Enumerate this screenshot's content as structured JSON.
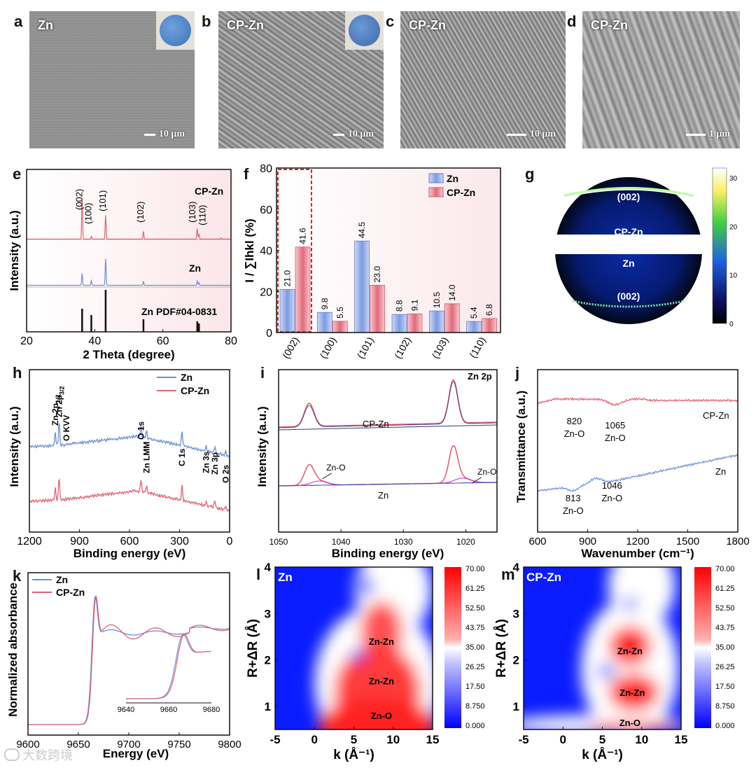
{
  "panels": {
    "a": {
      "letter": "a",
      "sample": "Zn",
      "scale": "10 μm"
    },
    "b": {
      "letter": "b",
      "sample": "CP-Zn",
      "scale": "10 μm"
    },
    "c": {
      "letter": "c",
      "sample": "CP-Zn",
      "scale": "10 μm"
    },
    "d": {
      "letter": "d",
      "sample": "CP-Zn",
      "scale": "1 μm"
    },
    "e": {
      "letter": "e"
    },
    "f": {
      "letter": "f"
    },
    "g": {
      "letter": "g"
    },
    "h": {
      "letter": "h"
    },
    "i": {
      "letter": "i"
    },
    "j": {
      "letter": "j"
    },
    "k": {
      "letter": "k"
    },
    "l": {
      "letter": "l"
    },
    "m": {
      "letter": "m"
    }
  },
  "colors": {
    "zn": "#6b8fdc",
    "cpzn": "#e06372",
    "black": "#111111"
  },
  "watermark": "大数跨境",
  "chart_data": [
    {
      "id": "e",
      "type": "line",
      "title": "",
      "xlabel": "2 Theta (degree)",
      "ylabel": "Intensity (a.u.)",
      "xlim": [
        20,
        80
      ],
      "xticks": [
        20,
        40,
        60,
        80
      ],
      "series": [
        {
          "name": "CP-Zn",
          "label": "CP-Zn",
          "peaks": [
            [
              36.3,
              0.95
            ],
            [
              39.0,
              0.06
            ],
            [
              43.2,
              0.55
            ],
            [
              54.3,
              0.18
            ],
            [
              70.1,
              0.24
            ],
            [
              70.6,
              0.12
            ],
            [
              77.0,
              0.03
            ]
          ]
        },
        {
          "name": "Zn",
          "label": "Zn",
          "peaks": [
            [
              36.3,
              0.45
            ],
            [
              39.0,
              0.18
            ],
            [
              43.2,
              1.0
            ],
            [
              54.3,
              0.14
            ],
            [
              70.1,
              0.16
            ],
            [
              70.6,
              0.1
            ]
          ]
        },
        {
          "name": "Zn PDF#04-0831",
          "label": "Zn PDF#04-0831",
          "peaks": [
            [
              36.3,
              0.55
            ],
            [
              39.0,
              0.4
            ],
            [
              43.2,
              1.0
            ],
            [
              54.3,
              0.3
            ],
            [
              70.1,
              0.25
            ],
            [
              70.6,
              0.2
            ]
          ]
        }
      ],
      "annotations": [
        {
          "text": "(002)",
          "x": 36.3
        },
        {
          "text": "(100)",
          "x": 39.0
        },
        {
          "text": "(101)",
          "x": 43.2
        },
        {
          "text": "(102)",
          "x": 54.3
        },
        {
          "text": "(103)",
          "x": 69.5
        },
        {
          "text": "(110)",
          "x": 72.5
        }
      ]
    },
    {
      "id": "f",
      "type": "bar",
      "title": "",
      "ylabel": "I / ∑Ihkl (%)",
      "ylim": [
        0,
        80
      ],
      "yticks": [
        0,
        20,
        40,
        60,
        80
      ],
      "categories": [
        "(002)",
        "(100)",
        "(101)",
        "(102)",
        "(103)",
        "(110)"
      ],
      "series": [
        {
          "name": "Zn",
          "values": [
            21.0,
            9.8,
            44.5,
            8.8,
            10.5,
            5.4
          ],
          "labels": [
            "21.0",
            "9.8",
            "44.5",
            "8.8",
            "10.5",
            "5.4"
          ]
        },
        {
          "name": "CP-Zn",
          "values": [
            41.6,
            5.5,
            23.0,
            9.1,
            14.0,
            6.8
          ],
          "labels": [
            "41.6",
            "5.5",
            "23.0",
            "9.1",
            "14.0",
            "6.8"
          ]
        }
      ],
      "legend": "top-right"
    },
    {
      "id": "g",
      "type": "heatmap",
      "title": "",
      "labels": [
        "(002)",
        "CP-Zn",
        "Zn",
        "(002)"
      ],
      "colorbar": {
        "ticks": [
          "30",
          "20",
          "10",
          "0"
        ],
        "range": [
          0,
          32
        ]
      }
    },
    {
      "id": "h",
      "type": "line",
      "title": "",
      "xlabel": "Binding energy (eV)",
      "ylabel": "Intensity (a.u.)",
      "xlim": [
        1200,
        0
      ],
      "xticks": [
        1200,
        900,
        600,
        300,
        0
      ],
      "series": [
        {
          "name": "Zn"
        },
        {
          "name": "CP-Zn"
        }
      ],
      "legend": "top-right",
      "annotations": [
        {
          "text": "Zn 2p",
          "sub": "1/2",
          "x": 1045
        },
        {
          "text": "Zn 2p",
          "sub": "3/2",
          "x": 1022
        },
        {
          "text": "O KVV",
          "x": 978
        },
        {
          "text": "O 1s",
          "x": 531
        },
        {
          "text": "Zn LMM",
          "x": 498
        },
        {
          "text": "C 1s",
          "x": 285
        },
        {
          "text": "Zn 3s",
          "x": 140
        },
        {
          "text": "Zn 3p",
          "x": 89
        },
        {
          "text": "O 2s",
          "x": 24
        }
      ]
    },
    {
      "id": "i",
      "type": "line",
      "title": "Zn 2p",
      "xlabel": "Binding energy (eV)",
      "ylabel": "Intensity (a.u.)",
      "xlim": [
        1050,
        1015
      ],
      "xticks": [
        1050,
        1040,
        1030,
        1020
      ],
      "series": [
        {
          "name": "CP-Zn",
          "label": "CP-Zn"
        },
        {
          "name": "Zn",
          "label": "Zn"
        }
      ],
      "peaks": [
        1045.1,
        1022.0
      ],
      "annotations": [
        {
          "text": "Zn-O",
          "x": 1041
        },
        {
          "text": "Zn-O",
          "x": 1017
        }
      ]
    },
    {
      "id": "j",
      "type": "line",
      "title": "",
      "xlabel": "Wavenumber (cm⁻¹)",
      "ylabel": "Transmittance (a.u.)",
      "xlim": [
        600,
        1800
      ],
      "xticks": [
        600,
        900,
        1200,
        1500,
        1800
      ],
      "series": [
        {
          "name": "CP-Zn",
          "label": "CP-Zn"
        },
        {
          "name": "Zn",
          "label": "Zn"
        }
      ],
      "annotations": [
        {
          "value": "820",
          "text": "Zn-O"
        },
        {
          "value": "1065",
          "text": "Zn-O"
        },
        {
          "value": "813",
          "text": "Zn-O"
        },
        {
          "value": "1046",
          "text": "Zn-O"
        }
      ]
    },
    {
      "id": "k",
      "type": "line",
      "title": "",
      "xlabel": "Energy (eV)",
      "ylabel": "Normalized absorbance",
      "xlim": [
        9600,
        9800
      ],
      "xticks": [
        9600,
        9650,
        9700,
        9750,
        9800
      ],
      "inset": {
        "xlim": [
          9640,
          9680
        ],
        "xticks": [
          9640,
          9660,
          9680
        ]
      },
      "series": [
        {
          "name": "Zn"
        },
        {
          "name": "CP-Zn"
        }
      ],
      "legend": "top-left"
    },
    {
      "id": "l",
      "type": "heatmap",
      "title": "Zn",
      "xlabel": "k (Å⁻¹)",
      "ylabel": "R+ΔR (Å)",
      "xlim": [
        -5,
        15
      ],
      "ylim": [
        0.5,
        4
      ],
      "xticks": [
        -5,
        0,
        5,
        10,
        15
      ],
      "yticks": [
        1,
        2,
        3,
        4
      ],
      "annotations": [
        {
          "text": "Zn-Zn",
          "x": 8.5,
          "y": 2.4
        },
        {
          "text": "Zn-Zn",
          "x": 8.5,
          "y": 1.55
        },
        {
          "text": "Zn-O",
          "x": 8.5,
          "y": 0.8
        }
      ],
      "colorbar": [
        "70.00",
        "61.25",
        "52.50",
        "43.75",
        "35.00",
        "26.25",
        "17.50",
        "8.750",
        "0.000"
      ]
    },
    {
      "id": "m",
      "type": "heatmap",
      "title": "CP-Zn",
      "xlabel": "k (Å⁻¹)",
      "ylabel": "R+ΔR (Å)",
      "xlim": [
        -5,
        15
      ],
      "ylim": [
        0.5,
        4
      ],
      "xticks": [
        -5,
        0,
        5,
        10,
        15
      ],
      "yticks": [
        1,
        2,
        3,
        4
      ],
      "annotations": [
        {
          "text": "Zn-Zn",
          "x": 8.5,
          "y": 2.2
        },
        {
          "text": "Zn-Zn",
          "x": 8.8,
          "y": 1.3
        },
        {
          "text": "Zn-O",
          "x": 8.5,
          "y": 0.65
        }
      ],
      "colorbar": [
        "70.00",
        "61.25",
        "52.50",
        "43.75",
        "35.00",
        "26.25",
        "17.50",
        "8.750",
        "0.000"
      ]
    }
  ]
}
